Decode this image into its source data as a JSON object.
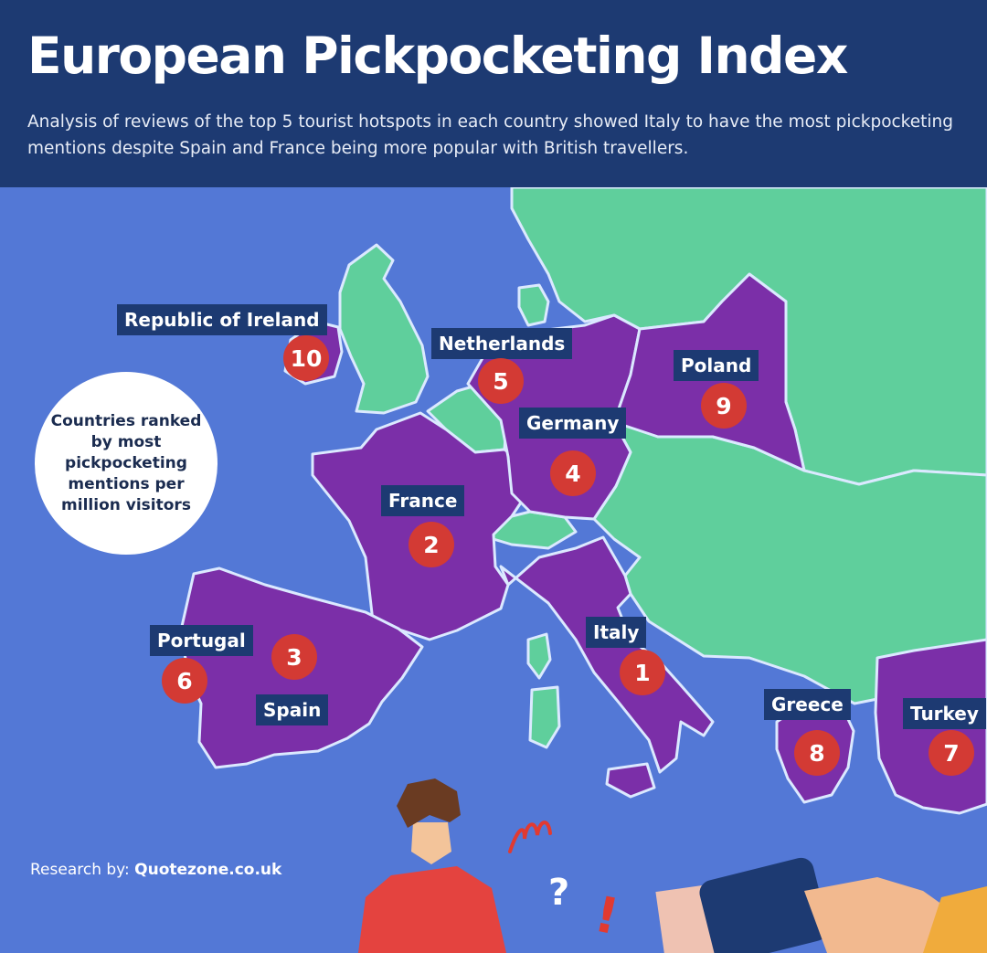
{
  "header": {
    "title": "European Pickpocketing Index",
    "subtitle": "Analysis of reviews of the top 5 tourist hotspots in each country showed Italy to have the most pickpocketing mentions despite Spain and France being more popular with British travellers."
  },
  "note": "Countries ranked by most pickpocketing mentions per million visitors",
  "countries": [
    {
      "name": "Italy",
      "rank": "1"
    },
    {
      "name": "France",
      "rank": "2"
    },
    {
      "name": "Spain",
      "rank": "3"
    },
    {
      "name": "Germany",
      "rank": "4"
    },
    {
      "name": "Netherlands",
      "rank": "5"
    },
    {
      "name": "Portugal",
      "rank": "6"
    },
    {
      "name": "Turkey",
      "rank": "7"
    },
    {
      "name": "Greece",
      "rank": "8"
    },
    {
      "name": "Poland",
      "rank": "9"
    },
    {
      "name": "Republic of Ireland",
      "rank": "10"
    }
  ],
  "credit": {
    "prefix": "Research by:",
    "source": "Quotezone.co.uk"
  },
  "illustration": {
    "doodles": [
      "?",
      "!"
    ]
  },
  "colors": {
    "sea": "#5378d6",
    "land": "#5fcf9c",
    "ranked_country": "#7b2fa8",
    "border": "#dbe9ff",
    "header": "#1d3a72",
    "badge": "#d33a34"
  },
  "icons": [
    "person-illustration",
    "wallet-illustration",
    "hand-illustration",
    "banknote-illustration"
  ]
}
